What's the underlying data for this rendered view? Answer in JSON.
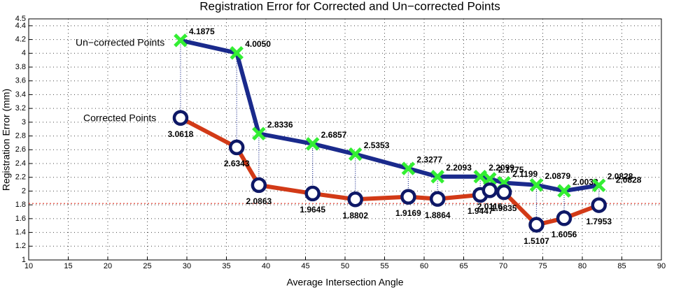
{
  "chart_data": {
    "type": "line",
    "title": "Registration Error for Corrected and Un−corrected Points",
    "xlabel": "Average Intersection Angle",
    "ylabel": "Registration Error (mm)",
    "x": [
      29.2,
      36.3,
      39.1,
      45.9,
      51.3,
      58.0,
      61.7,
      67.1,
      68.3,
      70.1,
      74.2,
      77.7,
      82.1
    ],
    "series": [
      {
        "name": "Un−corrected Points",
        "color": "#1a2a8c",
        "marker": "x",
        "marker_color": "#33ee33",
        "values": [
          4.1875,
          4.005,
          2.8336,
          2.6857,
          2.5353,
          2.3277,
          2.2093,
          2.2099,
          2.1775,
          2.1199,
          2.0879,
          2.0033,
          2.0828
        ],
        "value_labels": [
          "4.1875",
          "4.0050",
          "2.8336",
          "2.6857",
          "2.5353",
          "2.3277",
          "2.2093",
          "2.2099",
          "2.1775",
          "2.1199",
          "2.0879",
          "2.0033",
          "2.0828"
        ]
      },
      {
        "name": "Corrected Points",
        "color": "#d23a17",
        "marker": "o",
        "marker_color": "#0e1866",
        "values": [
          3.0618,
          2.6343,
          2.0863,
          1.9645,
          1.8802,
          1.9169,
          1.8864,
          1.9447,
          2.0116,
          1.9835,
          1.5107,
          1.6056,
          1.7953
        ],
        "value_labels": [
          "3.0618",
          "2.6343",
          "2.0863",
          "1.9645",
          "1.8802",
          "1.9169",
          "1.8864",
          "1.9447",
          "2.0116",
          "1.9835",
          "1.5107",
          "1.6056",
          "1.7953"
        ]
      }
    ],
    "reference_line": {
      "y": 1.82,
      "color": "#e03020"
    },
    "xlim": [
      10,
      90
    ],
    "xticks": [
      10,
      15,
      20,
      25,
      30,
      35,
      40,
      45,
      50,
      55,
      60,
      65,
      70,
      75,
      80,
      85,
      90
    ],
    "ylim": [
      1,
      4.5
    ],
    "yticks": [
      1,
      1.2,
      1.4,
      1.6,
      1.8,
      2,
      2.2,
      2.4,
      2.6,
      2.8,
      3,
      3.2,
      3.4,
      3.6,
      3.8,
      4,
      4.2,
      4.4,
      4.5
    ],
    "grid": true
  }
}
